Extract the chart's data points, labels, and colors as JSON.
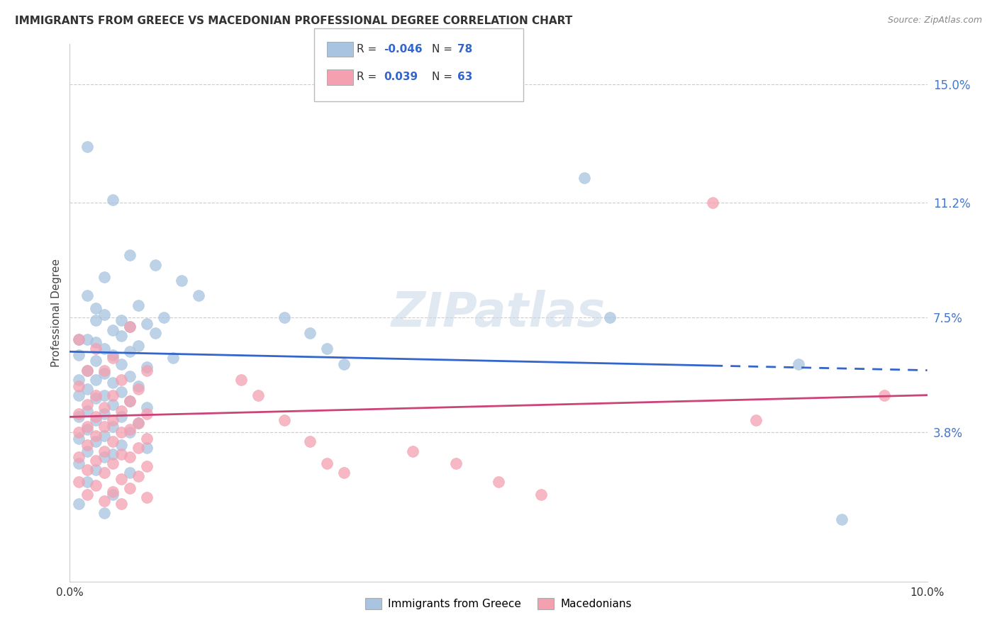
{
  "title": "IMMIGRANTS FROM GREECE VS MACEDONIAN PROFESSIONAL DEGREE CORRELATION CHART",
  "source": "Source: ZipAtlas.com",
  "ylabel": "Professional Degree",
  "ytick_labels": [
    "3.8%",
    "7.5%",
    "11.2%",
    "15.0%"
  ],
  "ytick_values": [
    0.038,
    0.075,
    0.112,
    0.15
  ],
  "xmin": 0.0,
  "xmax": 0.1,
  "ymin": -0.01,
  "ymax": 0.163,
  "legend_label1": "Immigrants from Greece",
  "legend_label2": "Macedonians",
  "color_blue": "#a8c4e0",
  "color_pink": "#f4a0b0",
  "line_color_blue": "#3366cc",
  "line_color_pink": "#cc4477",
  "watermark": "ZIPatlas",
  "blue_r": "-0.046",
  "blue_n": "78",
  "pink_r": "0.039",
  "pink_n": "63",
  "blue_line_y0": 0.064,
  "blue_line_y1": 0.058,
  "blue_line_solid_end": 0.075,
  "pink_line_y0": 0.043,
  "pink_line_y1": 0.05,
  "blue_scatter": [
    [
      0.002,
      0.13
    ],
    [
      0.005,
      0.113
    ],
    [
      0.007,
      0.095
    ],
    [
      0.01,
      0.092
    ],
    [
      0.004,
      0.088
    ],
    [
      0.013,
      0.087
    ],
    [
      0.002,
      0.082
    ],
    [
      0.015,
      0.082
    ],
    [
      0.008,
      0.079
    ],
    [
      0.003,
      0.078
    ],
    [
      0.004,
      0.076
    ],
    [
      0.011,
      0.075
    ],
    [
      0.003,
      0.074
    ],
    [
      0.006,
      0.074
    ],
    [
      0.009,
      0.073
    ],
    [
      0.007,
      0.072
    ],
    [
      0.005,
      0.071
    ],
    [
      0.01,
      0.07
    ],
    [
      0.006,
      0.069
    ],
    [
      0.002,
      0.068
    ],
    [
      0.001,
      0.068
    ],
    [
      0.003,
      0.067
    ],
    [
      0.008,
      0.066
    ],
    [
      0.004,
      0.065
    ],
    [
      0.007,
      0.064
    ],
    [
      0.001,
      0.063
    ],
    [
      0.005,
      0.063
    ],
    [
      0.012,
      0.062
    ],
    [
      0.003,
      0.061
    ],
    [
      0.006,
      0.06
    ],
    [
      0.009,
      0.059
    ],
    [
      0.002,
      0.058
    ],
    [
      0.004,
      0.057
    ],
    [
      0.007,
      0.056
    ],
    [
      0.001,
      0.055
    ],
    [
      0.003,
      0.055
    ],
    [
      0.005,
      0.054
    ],
    [
      0.008,
      0.053
    ],
    [
      0.002,
      0.052
    ],
    [
      0.006,
      0.051
    ],
    [
      0.004,
      0.05
    ],
    [
      0.001,
      0.05
    ],
    [
      0.003,
      0.049
    ],
    [
      0.007,
      0.048
    ],
    [
      0.005,
      0.047
    ],
    [
      0.009,
      0.046
    ],
    [
      0.002,
      0.045
    ],
    [
      0.004,
      0.044
    ],
    [
      0.006,
      0.043
    ],
    [
      0.001,
      0.043
    ],
    [
      0.003,
      0.042
    ],
    [
      0.008,
      0.041
    ],
    [
      0.005,
      0.04
    ],
    [
      0.002,
      0.039
    ],
    [
      0.007,
      0.038
    ],
    [
      0.004,
      0.037
    ],
    [
      0.001,
      0.036
    ],
    [
      0.003,
      0.035
    ],
    [
      0.006,
      0.034
    ],
    [
      0.009,
      0.033
    ],
    [
      0.002,
      0.032
    ],
    [
      0.005,
      0.031
    ],
    [
      0.004,
      0.03
    ],
    [
      0.001,
      0.028
    ],
    [
      0.003,
      0.026
    ],
    [
      0.007,
      0.025
    ],
    [
      0.002,
      0.022
    ],
    [
      0.005,
      0.018
    ],
    [
      0.001,
      0.015
    ],
    [
      0.004,
      0.012
    ],
    [
      0.025,
      0.075
    ],
    [
      0.028,
      0.07
    ],
    [
      0.03,
      0.065
    ],
    [
      0.032,
      0.06
    ],
    [
      0.06,
      0.12
    ],
    [
      0.063,
      0.075
    ],
    [
      0.085,
      0.06
    ],
    [
      0.09,
      0.01
    ]
  ],
  "pink_scatter": [
    [
      0.001,
      0.068
    ],
    [
      0.003,
      0.065
    ],
    [
      0.005,
      0.062
    ],
    [
      0.007,
      0.072
    ],
    [
      0.002,
      0.058
    ],
    [
      0.004,
      0.058
    ],
    [
      0.009,
      0.058
    ],
    [
      0.006,
      0.055
    ],
    [
      0.001,
      0.053
    ],
    [
      0.008,
      0.052
    ],
    [
      0.003,
      0.05
    ],
    [
      0.005,
      0.05
    ],
    [
      0.007,
      0.048
    ],
    [
      0.002,
      0.047
    ],
    [
      0.004,
      0.046
    ],
    [
      0.006,
      0.045
    ],
    [
      0.001,
      0.044
    ],
    [
      0.009,
      0.044
    ],
    [
      0.003,
      0.043
    ],
    [
      0.005,
      0.042
    ],
    [
      0.008,
      0.041
    ],
    [
      0.002,
      0.04
    ],
    [
      0.004,
      0.04
    ],
    [
      0.007,
      0.039
    ],
    [
      0.001,
      0.038
    ],
    [
      0.006,
      0.038
    ],
    [
      0.003,
      0.037
    ],
    [
      0.009,
      0.036
    ],
    [
      0.005,
      0.035
    ],
    [
      0.002,
      0.034
    ],
    [
      0.008,
      0.033
    ],
    [
      0.004,
      0.032
    ],
    [
      0.006,
      0.031
    ],
    [
      0.001,
      0.03
    ],
    [
      0.007,
      0.03
    ],
    [
      0.003,
      0.029
    ],
    [
      0.005,
      0.028
    ],
    [
      0.009,
      0.027
    ],
    [
      0.002,
      0.026
    ],
    [
      0.004,
      0.025
    ],
    [
      0.008,
      0.024
    ],
    [
      0.006,
      0.023
    ],
    [
      0.001,
      0.022
    ],
    [
      0.003,
      0.021
    ],
    [
      0.007,
      0.02
    ],
    [
      0.005,
      0.019
    ],
    [
      0.002,
      0.018
    ],
    [
      0.009,
      0.017
    ],
    [
      0.004,
      0.016
    ],
    [
      0.006,
      0.015
    ],
    [
      0.02,
      0.055
    ],
    [
      0.022,
      0.05
    ],
    [
      0.025,
      0.042
    ],
    [
      0.028,
      0.035
    ],
    [
      0.03,
      0.028
    ],
    [
      0.032,
      0.025
    ],
    [
      0.04,
      0.032
    ],
    [
      0.045,
      0.028
    ],
    [
      0.05,
      0.022
    ],
    [
      0.055,
      0.018
    ],
    [
      0.075,
      0.112
    ],
    [
      0.08,
      0.042
    ],
    [
      0.095,
      0.05
    ]
  ]
}
